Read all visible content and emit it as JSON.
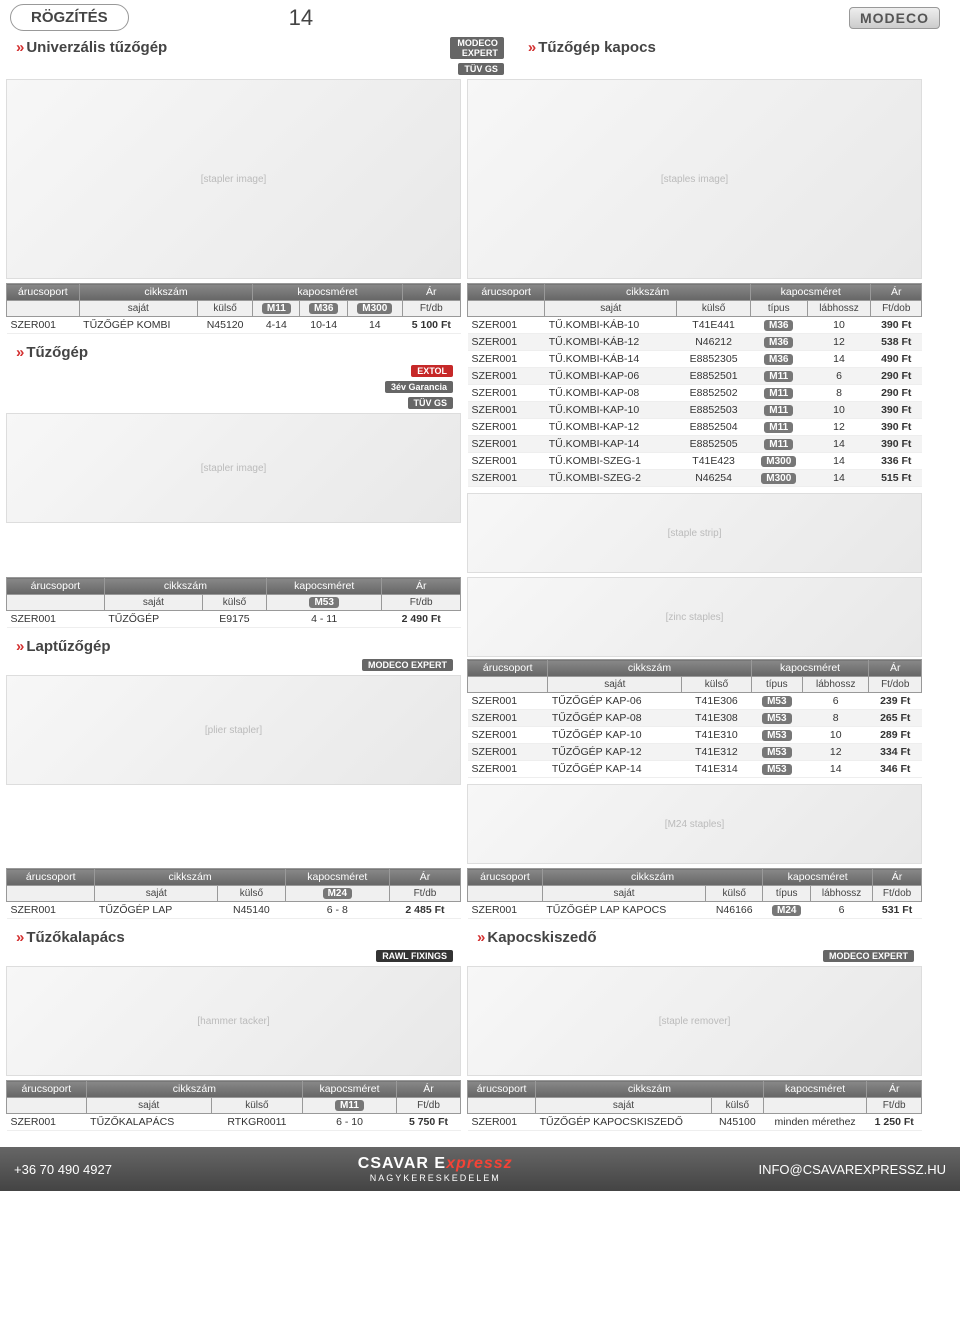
{
  "header": {
    "category": "RÖGZÍTÉS",
    "page_number": "14",
    "brand": "MODECO"
  },
  "sections": {
    "univ_stapler": "Univerzális tűzőgép",
    "staples": "Tűzőgép kapocs",
    "stapler": "Tűzőgép",
    "plier_stapler": "Laptűzőgép",
    "hammer_stapler": "Tűzőkalapács",
    "staple_remover": "Kapocskiszedő"
  },
  "table_headers": {
    "arucsoport": "árucsoport",
    "cikkszam": "cikkszám",
    "kapocsmeret": "kapocsméret",
    "ar": "Ár",
    "sajat": "saját",
    "kulso": "külső",
    "tipus": "típus",
    "labhossz": "lábhossz",
    "ftdb": "Ft/db",
    "ftdob": "Ft/dob"
  },
  "badges": {
    "m11": "M11",
    "m24": "M24",
    "m36": "M36",
    "m53": "M53",
    "m300": "M300"
  },
  "t_kombi": {
    "row": [
      "SZER001",
      "TŰZŐGÉP KOMBI",
      "N45120",
      "4-14",
      "10-14",
      "14",
      "5 100 Ft"
    ]
  },
  "t_kapocs_rows": [
    [
      "SZER001",
      "TŰ.KOMBI-KÁB-10",
      "T41E441",
      "M36",
      "10",
      "390 Ft"
    ],
    [
      "SZER001",
      "TŰ.KOMBI-KÁB-12",
      "N46212",
      "M36",
      "12",
      "538 Ft"
    ],
    [
      "SZER001",
      "TŰ.KOMBI-KÁB-14",
      "E8852305",
      "M36",
      "14",
      "490 Ft"
    ],
    [
      "SZER001",
      "TŰ.KOMBI-KAP-06",
      "E8852501",
      "M11",
      "6",
      "290 Ft"
    ],
    [
      "SZER001",
      "TŰ.KOMBI-KAP-08",
      "E8852502",
      "M11",
      "8",
      "290 Ft"
    ],
    [
      "SZER001",
      "TŰ.KOMBI-KAP-10",
      "E8852503",
      "M11",
      "10",
      "390 Ft"
    ],
    [
      "SZER001",
      "TŰ.KOMBI-KAP-12",
      "E8852504",
      "M11",
      "12",
      "390 Ft"
    ],
    [
      "SZER001",
      "TŰ.KOMBI-KAP-14",
      "E8852505",
      "M11",
      "14",
      "390 Ft"
    ],
    [
      "SZER001",
      "TŰ.KOMBI-SZEG-1",
      "T41E423",
      "M300",
      "14",
      "336 Ft"
    ],
    [
      "SZER001",
      "TŰ.KOMBI-SZEG-2",
      "N46254",
      "M300",
      "14",
      "515 Ft"
    ]
  ],
  "t_stapler": {
    "row": [
      "SZER001",
      "TŰZŐGÉP",
      "E9175",
      "4 - 11",
      "2 490 Ft"
    ]
  },
  "t_stapler_kap_rows": [
    [
      "SZER001",
      "TŰZŐGÉP KAP-06",
      "T41E306",
      "M53",
      "6",
      "239 Ft"
    ],
    [
      "SZER001",
      "TŰZŐGÉP KAP-08",
      "T41E308",
      "M53",
      "8",
      "265 Ft"
    ],
    [
      "SZER001",
      "TŰZŐGÉP KAP-10",
      "T41E310",
      "M53",
      "10",
      "289 Ft"
    ],
    [
      "SZER001",
      "TŰZŐGÉP KAP-12",
      "T41E312",
      "M53",
      "12",
      "334 Ft"
    ],
    [
      "SZER001",
      "TŰZŐGÉP KAP-14",
      "T41E314",
      "M53",
      "14",
      "346 Ft"
    ]
  ],
  "t_lap": {
    "row": [
      "SZER001",
      "TŰZŐGÉP LAP",
      "N45140",
      "6 - 8",
      "2 485 Ft"
    ]
  },
  "t_lap_kapocs": {
    "row": [
      "SZER001",
      "TŰZŐGÉP LAP KAPOCS",
      "N46166",
      "M24",
      "6",
      "531 Ft"
    ]
  },
  "t_kalapacs": {
    "row": [
      "SZER001",
      "TŰZŐKALAPÁCS",
      "RTKGR0011",
      "6 - 10",
      "5 750 Ft"
    ]
  },
  "t_kiszedo": {
    "row": [
      "SZER001",
      "TŰZŐGÉP KAPOCSKISZEDŐ",
      "N45100",
      "minden mérethez",
      "1 250 Ft"
    ]
  },
  "sublogos": {
    "extol": "EXTOL",
    "garancia": "3év Garancia",
    "modeco_expert": "MODECO EXPERT",
    "rawl": "RAWL FIXINGS",
    "tuv": "TÜV GS"
  },
  "footer": {
    "phone": "+36 70 490 4927",
    "brand1": "CSAVAR E",
    "brand2": "xpressz",
    "sub": "NAGYKERESKEDELEM",
    "email": "INFO@CSAVAREXPRESSZ.HU"
  }
}
